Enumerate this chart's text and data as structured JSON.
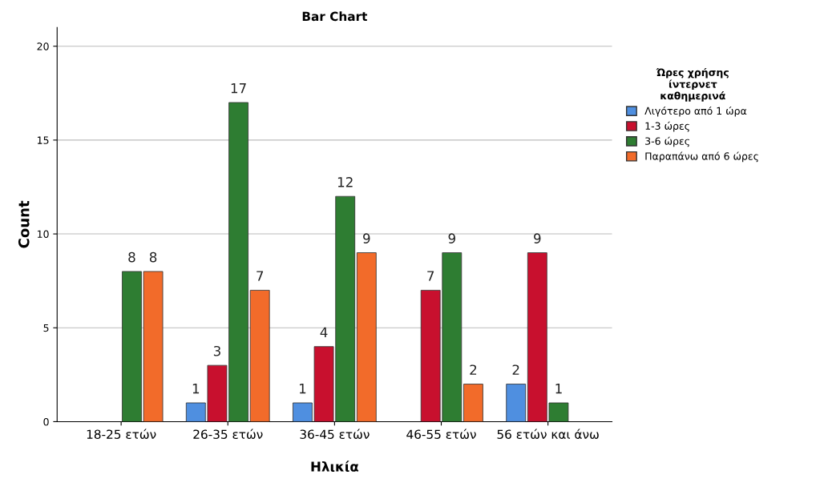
{
  "chart_data": {
    "type": "bar",
    "title": "Bar Chart",
    "xlabel": "Ηλικία",
    "ylabel": "Count",
    "legend_title": "Ώρες χρήσης ίντερνετ καθημερινά",
    "categories": [
      "18-25 ετών",
      "26-35 ετών",
      "36-45 ετών",
      "46-55 ετών",
      "56 ετών και άνω"
    ],
    "series": [
      {
        "name": "Λιγότερο από 1 ώρα",
        "color": "#4f8fe0",
        "values": [
          null,
          1,
          1,
          null,
          2
        ]
      },
      {
        "name": "1-3 ώρες",
        "color": "#c8102e",
        "values": [
          null,
          3,
          4,
          7,
          9
        ]
      },
      {
        "name": "3-6 ώρες",
        "color": "#2e7d32",
        "values": [
          8,
          17,
          12,
          9,
          1
        ]
      },
      {
        "name": "Παραπάνω από 6 ώρες",
        "color": "#f26b2a",
        "values": [
          8,
          7,
          9,
          2,
          null
        ]
      }
    ],
    "ylim": [
      0,
      21
    ],
    "yticks": [
      0,
      5,
      10,
      15,
      20
    ],
    "grid": "y",
    "legend": "top right",
    "data_labels": true
  }
}
